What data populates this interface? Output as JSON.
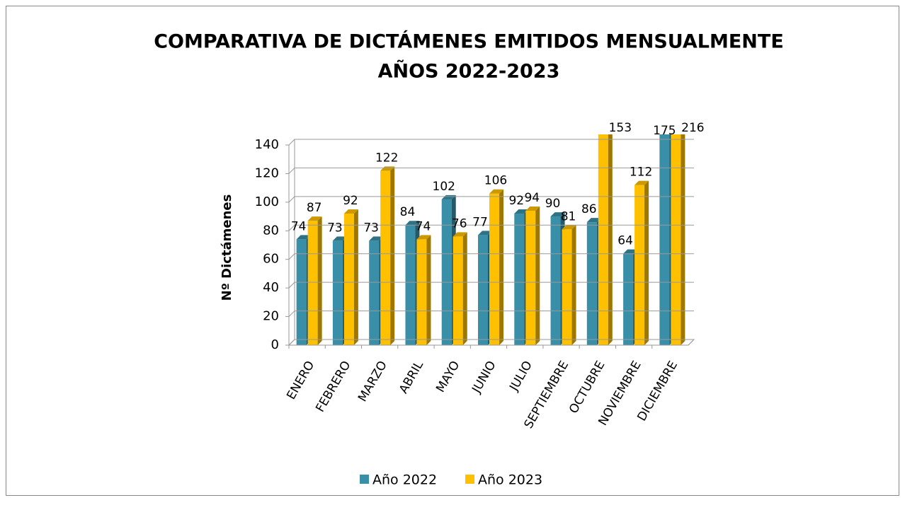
{
  "chart_data": {
    "type": "bar3d",
    "title": "COMPARATIVA DE DICTÁMENES EMITIDOS MENSUALMENTE",
    "subtitle": "AÑOS 2022-2023",
    "y_label": "Nº Dictámenes",
    "categories": [
      "ENERO",
      "FEBRERO",
      "MARZO",
      "ABRIL",
      "MAYO",
      "JUNIO",
      "JULIO",
      "SEPTIEMBRE",
      "OCTUBRE",
      "NOVIEMBRE",
      "DICIEMBRE"
    ],
    "series": [
      {
        "name": "Año 2022",
        "color": "#3a8fa8",
        "values": [
          74,
          73,
          73,
          84,
          102,
          77,
          92,
          90,
          86,
          64,
          175
        ]
      },
      {
        "name": "Año 2023",
        "color": "#ffc000",
        "values": [
          87,
          92,
          122,
          74,
          76,
          106,
          94,
          81,
          153,
          112,
          216
        ]
      }
    ],
    "ylim": [
      0,
      140
    ],
    "yticks": [
      0,
      20,
      40,
      60,
      80,
      100,
      120,
      140
    ],
    "grid": true,
    "legend": "bottom"
  }
}
